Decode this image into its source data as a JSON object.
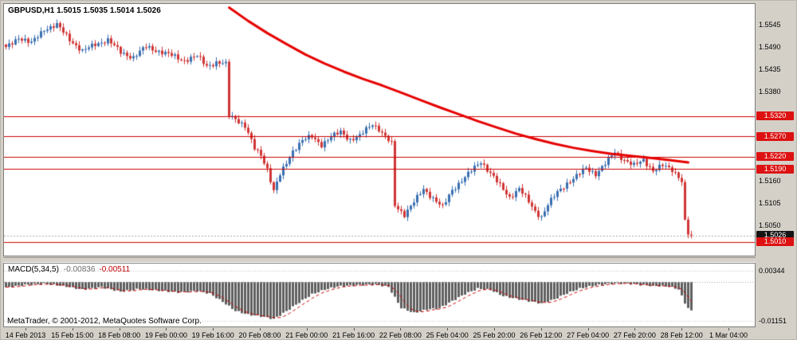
{
  "header": {
    "symbol_ohlc": "GBPUSD,H1 1.5015 1.5035 1.5014 1.5026"
  },
  "footer": {
    "copyright": "MetaTrader, © 2001-2012, MetaQuotes Software Corp."
  },
  "macd_label": {
    "name": "MACD(5,34,5)",
    "value": "-0.00836",
    "signal": "-0.00511"
  },
  "colors": {
    "bull": "#3a6fb0",
    "bear": "#d03535",
    "ma": "#e60000",
    "hline": "#cc0000",
    "histogram": "#5f5f5f",
    "signal": "#cc0000",
    "red_label_box": "#dd1111",
    "bid_label_box": "#151515"
  },
  "chart_data": {
    "type": "candlestick",
    "symbol": "GBPUSD",
    "timeframe": "H1",
    "current_ohlc": {
      "open": 1.5015,
      "high": 1.5035,
      "low": 1.5014,
      "close": 1.5026
    },
    "bar_count": 216,
    "price_axis": {
      "max": 1.5597,
      "min": 1.4976,
      "ticks": [
        {
          "text": "1.5545",
          "price": 1.5545
        },
        {
          "text": "1.5490",
          "price": 1.549
        },
        {
          "text": "1.5435",
          "price": 1.5435
        },
        {
          "text": "1.5380",
          "price": 1.538
        },
        {
          "text": "1.5160",
          "price": 1.516
        },
        {
          "text": "1.5105",
          "price": 1.5105
        },
        {
          "text": "1.5050",
          "price": 1.505
        }
      ]
    },
    "price_lines": [
      {
        "text": "1.5320",
        "price": 1.532,
        "box": "red",
        "line": "#cc0000",
        "dash": false
      },
      {
        "text": "1.5270",
        "price": 1.527,
        "box": "red",
        "line": "#cc0000",
        "dash": false
      },
      {
        "text": "1.5220",
        "price": 1.522,
        "box": "red",
        "line": "#cc0000",
        "dash": false
      },
      {
        "text": "1.5190",
        "price": 1.519,
        "box": "red",
        "line": "#cc0000",
        "dash": false
      },
      {
        "text": "1.5026",
        "price": 1.5026,
        "box": "bid",
        "line": "#aaaaaa",
        "dash": true
      },
      {
        "text": "1.5010",
        "price": 1.501,
        "box": "red",
        "line": "#cc0000",
        "dash": false
      }
    ],
    "time_labels": [
      "14 Feb 2013",
      "15 Feb 15:00",
      "18 Feb 08:00",
      "19 Feb 00:00",
      "19 Feb 16:00",
      "20 Feb 08:00",
      "21 Feb 00:00",
      "21 Feb 16:00",
      "22 Feb 08:00",
      "25 Feb 04:00",
      "25 Feb 20:00",
      "26 Feb 12:00",
      "27 Feb 04:00",
      "27 Feb 20:00",
      "28 Feb 12:00",
      "1 Mar 04:00"
    ],
    "close_keyframes": [
      [
        0,
        1.5488
      ],
      [
        4,
        1.5515
      ],
      [
        8,
        1.55
      ],
      [
        12,
        1.5535
      ],
      [
        16,
        1.5545
      ],
      [
        20,
        1.551
      ],
      [
        24,
        1.548
      ],
      [
        28,
        1.5498
      ],
      [
        32,
        1.5508
      ],
      [
        36,
        1.5478
      ],
      [
        40,
        1.5465
      ],
      [
        44,
        1.5492
      ],
      [
        48,
        1.548
      ],
      [
        52,
        1.547
      ],
      [
        56,
        1.5458
      ],
      [
        60,
        1.5468
      ],
      [
        63,
        1.5445
      ],
      [
        66,
        1.5452
      ],
      [
        69,
        1.5448
      ],
      [
        70,
        1.5322
      ],
      [
        72,
        1.5315
      ],
      [
        75,
        1.5295
      ],
      [
        78,
        1.524
      ],
      [
        80,
        1.5225
      ],
      [
        82,
        1.519
      ],
      [
        84,
        1.5135
      ],
      [
        86,
        1.5175
      ],
      [
        88,
        1.5205
      ],
      [
        90,
        1.5235
      ],
      [
        93,
        1.526
      ],
      [
        96,
        1.527
      ],
      [
        99,
        1.525
      ],
      [
        102,
        1.5268
      ],
      [
        105,
        1.5282
      ],
      [
        108,
        1.5262
      ],
      [
        111,
        1.527
      ],
      [
        113,
        1.5288
      ],
      [
        115,
        1.5302
      ],
      [
        117,
        1.5288
      ],
      [
        119,
        1.5268
      ],
      [
        121,
        1.5252
      ],
      [
        122,
        1.51
      ],
      [
        125,
        1.5078
      ],
      [
        128,
        1.5108
      ],
      [
        131,
        1.514
      ],
      [
        134,
        1.5118
      ],
      [
        137,
        1.5095
      ],
      [
        140,
        1.5138
      ],
      [
        143,
        1.5162
      ],
      [
        146,
        1.5185
      ],
      [
        149,
        1.5208
      ],
      [
        152,
        1.518
      ],
      [
        155,
        1.5148
      ],
      [
        158,
        1.512
      ],
      [
        161,
        1.5142
      ],
      [
        164,
        1.5108
      ],
      [
        166,
        1.5085
      ],
      [
        168,
        1.5072
      ],
      [
        170,
        1.5102
      ],
      [
        173,
        1.5132
      ],
      [
        176,
        1.5155
      ],
      [
        179,
        1.5172
      ],
      [
        182,
        1.5192
      ],
      [
        185,
        1.5178
      ],
      [
        188,
        1.5202
      ],
      [
        191,
        1.5232
      ],
      [
        194,
        1.5212
      ],
      [
        197,
        1.5198
      ],
      [
        200,
        1.5212
      ],
      [
        203,
        1.5186
      ],
      [
        206,
        1.5198
      ],
      [
        209,
        1.5188
      ],
      [
        211,
        1.5172
      ],
      [
        212,
        1.516
      ],
      [
        213,
        1.506
      ],
      [
        214,
        1.503
      ],
      [
        215,
        1.5026
      ]
    ],
    "ma_keyframes": [
      [
        70,
        1.5588
      ],
      [
        76,
        1.5555
      ],
      [
        82,
        1.5525
      ],
      [
        88,
        1.5498
      ],
      [
        94,
        1.5472
      ],
      [
        100,
        1.545
      ],
      [
        106,
        1.543
      ],
      [
        112,
        1.5412
      ],
      [
        118,
        1.5396
      ],
      [
        124,
        1.5378
      ],
      [
        130,
        1.536
      ],
      [
        136,
        1.5342
      ],
      [
        142,
        1.5325
      ],
      [
        148,
        1.5308
      ],
      [
        154,
        1.5292
      ],
      [
        160,
        1.5277
      ],
      [
        166,
        1.5264
      ],
      [
        172,
        1.5252
      ],
      [
        178,
        1.5242
      ],
      [
        184,
        1.5234
      ],
      [
        190,
        1.5227
      ],
      [
        196,
        1.5222
      ],
      [
        202,
        1.5217
      ],
      [
        208,
        1.5212
      ],
      [
        214,
        1.5206
      ]
    ],
    "macd": {
      "type": "histogram",
      "params": "5,34,5",
      "current_value": -0.00836,
      "current_signal": -0.00511,
      "ylim": [
        -0.0131,
        0.0055
      ],
      "axis_ticks": [
        {
          "text": "0.00344",
          "value": 0.00344
        },
        {
          "text": "-0.01151",
          "value": -0.01151
        }
      ],
      "value_keyframes": [
        [
          0,
          -0.0016
        ],
        [
          6,
          -0.0008
        ],
        [
          12,
          -0.0005
        ],
        [
          18,
          -0.0011
        ],
        [
          24,
          -0.0022
        ],
        [
          30,
          -0.0015
        ],
        [
          36,
          -0.0028
        ],
        [
          42,
          -0.002
        ],
        [
          48,
          -0.0025
        ],
        [
          54,
          -0.003
        ],
        [
          60,
          -0.0026
        ],
        [
          64,
          -0.0034
        ],
        [
          68,
          -0.0058
        ],
        [
          72,
          -0.0085
        ],
        [
          76,
          -0.0096
        ],
        [
          80,
          -0.0101
        ],
        [
          84,
          -0.0109
        ],
        [
          88,
          -0.0086
        ],
        [
          92,
          -0.006
        ],
        [
          96,
          -0.0036
        ],
        [
          100,
          -0.0022
        ],
        [
          104,
          -0.0013
        ],
        [
          108,
          -0.001
        ],
        [
          112,
          -0.0008
        ],
        [
          116,
          -0.0007
        ],
        [
          120,
          -0.0014
        ],
        [
          124,
          -0.0076
        ],
        [
          128,
          -0.0091
        ],
        [
          132,
          -0.0081
        ],
        [
          136,
          -0.0077
        ],
        [
          140,
          -0.0056
        ],
        [
          144,
          -0.0035
        ],
        [
          148,
          -0.0019
        ],
        [
          152,
          -0.0023
        ],
        [
          156,
          -0.0041
        ],
        [
          160,
          -0.0049
        ],
        [
          164,
          -0.0056
        ],
        [
          168,
          -0.0063
        ],
        [
          172,
          -0.0051
        ],
        [
          176,
          -0.0033
        ],
        [
          180,
          -0.0019
        ],
        [
          184,
          -0.0011
        ],
        [
          188,
          -0.0006
        ],
        [
          192,
          -0.0003
        ],
        [
          196,
          -0.0005
        ],
        [
          200,
          -0.0009
        ],
        [
          204,
          -0.0011
        ],
        [
          208,
          -0.0013
        ],
        [
          211,
          -0.0021
        ],
        [
          213,
          -0.0062
        ],
        [
          214,
          -0.0076
        ],
        [
          215,
          -0.00836
        ]
      ]
    }
  }
}
